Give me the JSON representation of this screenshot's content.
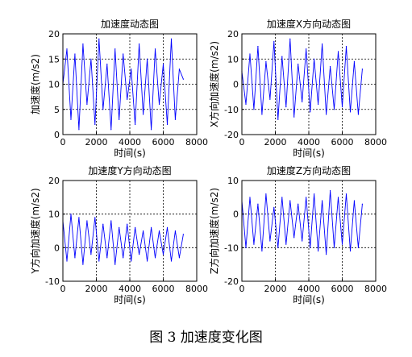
{
  "caption": "图 3  加速度变化图",
  "chart_data": [
    {
      "type": "line",
      "title": "加速度动态图",
      "xlabel": "时间(s)",
      "ylabel": "加速度(m/s2)",
      "xlim": [
        0,
        8000
      ],
      "ylim": [
        0,
        20
      ],
      "xticks": [
        0,
        2000,
        4000,
        6000,
        8000
      ],
      "yticks": [
        0,
        5,
        10,
        15,
        20
      ],
      "grid": true,
      "line_color": "#0000ff",
      "series": [
        {
          "x": [
            0,
            240,
            480,
            720,
            960,
            1200,
            1440,
            1680,
            1920,
            2160,
            2400,
            2640,
            2880,
            3120,
            3360,
            3600,
            3840,
            4080,
            4320,
            4560,
            4800,
            5040,
            5280,
            5520,
            5760,
            6000,
            6240,
            6480,
            6720,
            6960,
            7200
          ],
          "values": [
            10,
            17,
            3,
            16,
            1,
            18,
            6,
            15,
            2,
            19,
            5,
            14,
            1,
            17,
            3,
            16,
            7,
            13,
            2,
            18,
            4,
            15,
            1,
            17,
            6,
            14,
            2,
            19,
            3,
            13,
            11
          ]
        }
      ]
    },
    {
      "type": "line",
      "title": "加速度X方向动态图",
      "xlabel": "时间(s)",
      "ylabel": "X方向加速度(m/s2)",
      "xlim": [
        0,
        8000
      ],
      "ylim": [
        -20,
        20
      ],
      "xticks": [
        0,
        2000,
        4000,
        6000,
        8000
      ],
      "yticks": [
        -20,
        -10,
        0,
        10,
        20
      ],
      "grid": true,
      "line_color": "#0000ff",
      "series": [
        {
          "x": [
            0,
            240,
            480,
            720,
            960,
            1200,
            1440,
            1680,
            1920,
            2160,
            2400,
            2640,
            2880,
            3120,
            3360,
            3600,
            3840,
            4080,
            4320,
            4560,
            4800,
            5040,
            5280,
            5520,
            5760,
            6000,
            6240,
            6480,
            6720,
            6960,
            7200
          ],
          "values": [
            5,
            -8,
            12,
            -10,
            15,
            -12,
            9,
            -6,
            17,
            -14,
            11,
            -9,
            18,
            -13,
            8,
            -7,
            14,
            -11,
            10,
            -8,
            16,
            -12,
            7,
            -10,
            13,
            -9,
            15,
            -11,
            9,
            -12,
            6
          ]
        }
      ]
    },
    {
      "type": "line",
      "title": "加速度Y方向动态图",
      "xlabel": "时间(s)",
      "ylabel": "Y方向加速度(m/s2)",
      "xlim": [
        0,
        8000
      ],
      "ylim": [
        -10,
        20
      ],
      "xticks": [
        0,
        2000,
        4000,
        6000,
        8000
      ],
      "yticks": [
        -10,
        0,
        10,
        20
      ],
      "grid": true,
      "line_color": "#0000ff",
      "series": [
        {
          "x": [
            0,
            240,
            480,
            720,
            960,
            1200,
            1440,
            1680,
            1920,
            2160,
            2400,
            2640,
            2880,
            3120,
            3360,
            3600,
            3840,
            4080,
            4320,
            4560,
            4800,
            5040,
            5280,
            5520,
            5760,
            6000,
            6240,
            6480,
            6720,
            6960,
            7200
          ],
          "values": [
            8,
            -4,
            10,
            -3,
            9,
            -5,
            8,
            -2,
            9,
            -4,
            7,
            -3,
            8,
            -5,
            6,
            -3,
            7,
            -4,
            6,
            -2,
            5,
            -4,
            6,
            -3,
            5,
            -2,
            6,
            -4,
            5,
            -3,
            4
          ]
        }
      ]
    },
    {
      "type": "line",
      "title": "加速度Z方向动态图",
      "xlabel": "时间(s)",
      "ylabel": "Z方向加速度(m/s2)",
      "xlim": [
        0,
        8000
      ],
      "ylim": [
        -20,
        10
      ],
      "xticks": [
        0,
        2000,
        4000,
        6000,
        8000
      ],
      "yticks": [
        -20,
        -10,
        0,
        10
      ],
      "grid": true,
      "line_color": "#0000ff",
      "series": [
        {
          "x": [
            0,
            240,
            480,
            720,
            960,
            1200,
            1440,
            1680,
            1920,
            2160,
            2400,
            2640,
            2880,
            3120,
            3360,
            3600,
            3840,
            4080,
            4320,
            4560,
            4800,
            5040,
            5280,
            5520,
            5760,
            6000,
            6240,
            6480,
            6720,
            6960,
            7200
          ],
          "values": [
            4,
            -10,
            5,
            -9,
            3,
            -11,
            6,
            -8,
            2,
            -10,
            5,
            -9,
            4,
            -7,
            3,
            -8,
            5,
            -10,
            6,
            -11,
            4,
            -12,
            7,
            -10,
            5,
            -9,
            6,
            -11,
            4,
            -10,
            3
          ]
        }
      ]
    }
  ]
}
